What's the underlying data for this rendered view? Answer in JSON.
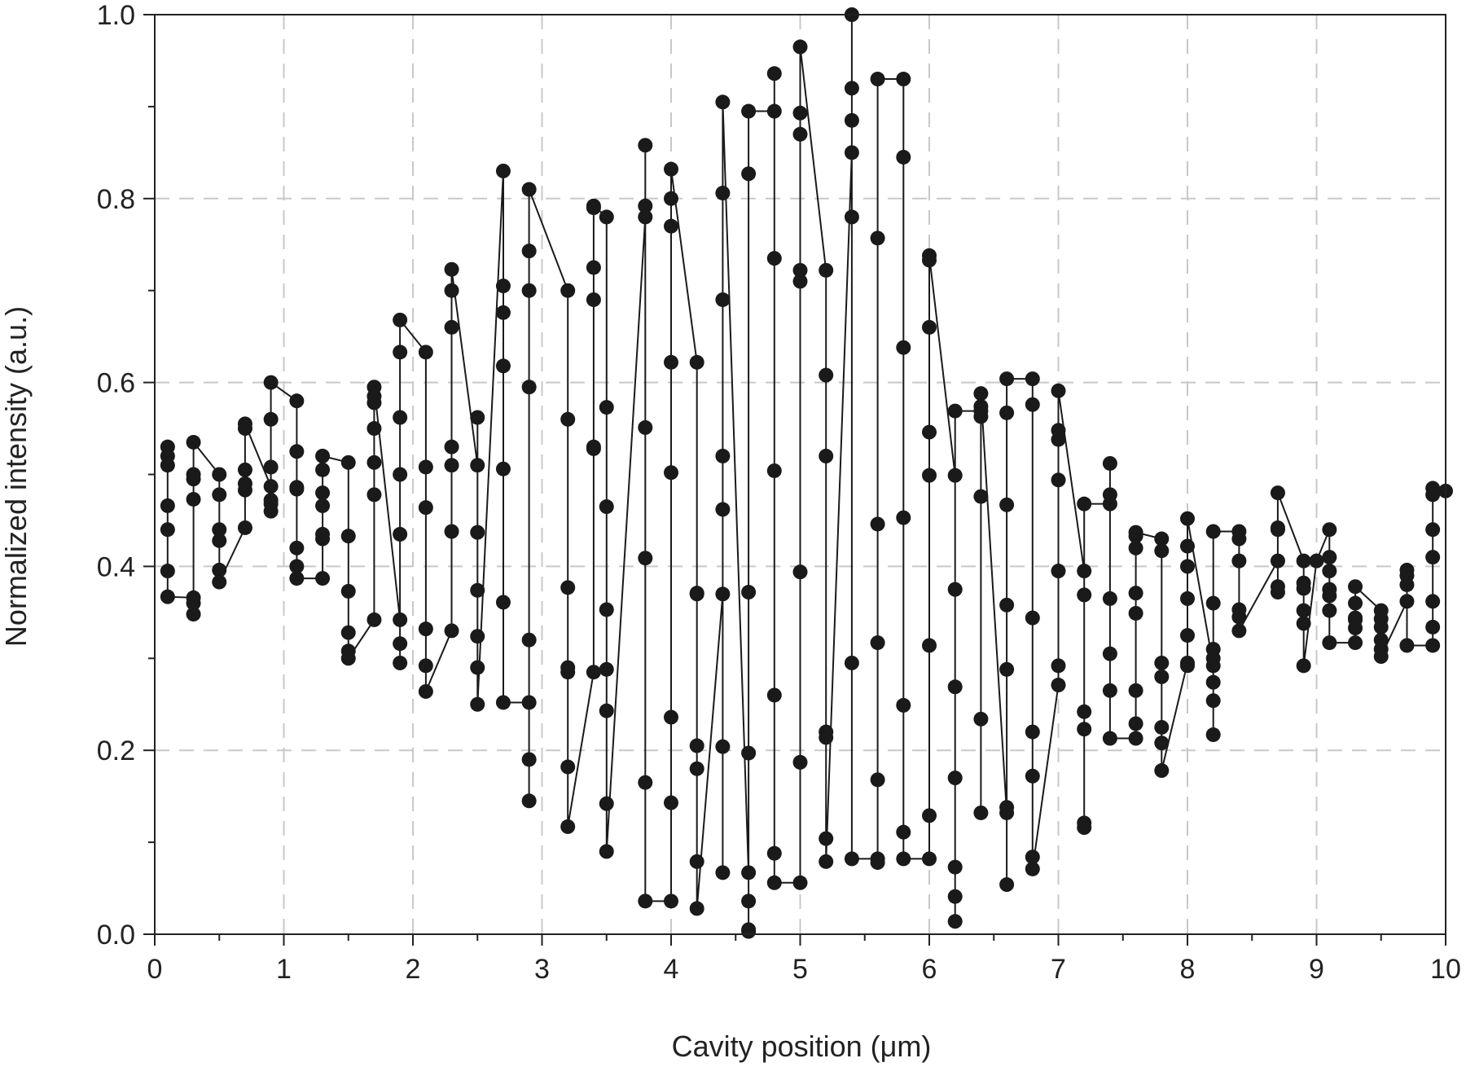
{
  "chart_data": {
    "type": "line",
    "xlabel": "Cavity position (μm)",
    "ylabel": "Normalized intensity (a.u.)",
    "xlim": [
      0,
      10
    ],
    "ylim": [
      0,
      1.0
    ],
    "x_ticks": [
      0,
      1,
      2,
      3,
      4,
      5,
      6,
      7,
      8,
      9,
      10
    ],
    "x_tick_labels": [
      "0",
      "1",
      "2",
      "3",
      "4",
      "5",
      "6",
      "7",
      "8",
      "9",
      "10"
    ],
    "y_ticks": [
      0.0,
      0.2,
      0.4,
      0.6,
      0.8,
      1.0
    ],
    "y_tick_labels": [
      "0.0",
      "0.2",
      "0.4",
      "0.6",
      "0.8",
      "1.0"
    ],
    "grid": true,
    "marker": "filled-circle",
    "series_color": "#1a1a1a",
    "columns": [
      {
        "x": 0.1,
        "y": [
          0.53,
          0.52,
          0.51,
          0.466,
          0.44,
          0.395,
          0.367
        ]
      },
      {
        "x": 0.3,
        "y": [
          0.366,
          0.36,
          0.348,
          0.473,
          0.495,
          0.5,
          0.535
        ]
      },
      {
        "x": 0.5,
        "y": [
          0.5,
          0.478,
          0.44,
          0.428,
          0.396,
          0.383
        ]
      },
      {
        "x": 0.7,
        "y": [
          0.442,
          0.483,
          0.49,
          0.505,
          0.55,
          0.555
        ]
      },
      {
        "x": 0.9,
        "y": [
          0.487,
          0.46,
          0.468,
          0.472,
          0.508,
          0.56,
          0.6
        ]
      },
      {
        "x": 1.1,
        "y": [
          0.58,
          0.525,
          0.486,
          0.484,
          0.42,
          0.4,
          0.387
        ]
      },
      {
        "x": 1.3,
        "y": [
          0.387,
          0.43,
          0.435,
          0.466,
          0.48,
          0.505,
          0.52
        ]
      },
      {
        "x": 1.5,
        "y": [
          0.513,
          0.433,
          0.373,
          0.328,
          0.308,
          0.3
        ]
      },
      {
        "x": 1.7,
        "y": [
          0.342,
          0.478,
          0.513,
          0.55,
          0.578,
          0.585,
          0.595
        ]
      },
      {
        "x": 1.9,
        "y": [
          0.342,
          0.316,
          0.295,
          0.435,
          0.5,
          0.562,
          0.633,
          0.668
        ]
      },
      {
        "x": 2.1,
        "y": [
          0.633,
          0.508,
          0.464,
          0.332,
          0.292,
          0.264
        ]
      },
      {
        "x": 2.3,
        "y": [
          0.33,
          0.438,
          0.51,
          0.53,
          0.66,
          0.7,
          0.723
        ]
      },
      {
        "x": 2.5,
        "y": [
          0.51,
          0.562,
          0.437,
          0.374,
          0.324,
          0.29,
          0.25
        ]
      },
      {
        "x": 2.7,
        "y": [
          0.83,
          0.705,
          0.676,
          0.618,
          0.506,
          0.361,
          0.252
        ]
      },
      {
        "x": 2.9,
        "y": [
          0.252,
          0.32,
          0.19,
          0.145,
          0.595,
          0.7,
          0.743,
          0.81
        ]
      },
      {
        "x": 3.2,
        "y": [
          0.7,
          0.56,
          0.377,
          0.29,
          0.285,
          0.182,
          0.117
        ]
      },
      {
        "x": 3.4,
        "y": [
          0.285,
          0.53,
          0.528,
          0.69,
          0.725,
          0.79,
          0.792
        ]
      },
      {
        "x": 3.5,
        "y": [
          0.78,
          0.573,
          0.465,
          0.353,
          0.288,
          0.243,
          0.142,
          0.09
        ]
      },
      {
        "x": 3.8,
        "y": [
          0.78,
          0.792,
          0.858,
          0.551,
          0.409,
          0.165,
          0.036
        ]
      },
      {
        "x": 4.0,
        "y": [
          0.036,
          0.143,
          0.236,
          0.502,
          0.622,
          0.77,
          0.8,
          0.832
        ]
      },
      {
        "x": 4.2,
        "y": [
          0.622,
          0.371,
          0.37,
          0.205,
          0.18,
          0.079,
          0.028
        ]
      },
      {
        "x": 4.4,
        "y": [
          0.37,
          0.52,
          0.462,
          0.204,
          0.067,
          0.69,
          0.806,
          0.905
        ]
      },
      {
        "x": 4.6,
        "y": [
          0.067,
          0.036,
          0.005,
          0.003,
          0.197,
          0.372,
          0.827,
          0.895
        ]
      },
      {
        "x": 4.8,
        "y": [
          0.895,
          0.936,
          0.735,
          0.504,
          0.26,
          0.088,
          0.056
        ]
      },
      {
        "x": 5.0,
        "y": [
          0.056,
          0.187,
          0.394,
          0.71,
          0.722,
          0.87,
          0.893,
          0.965
        ]
      },
      {
        "x": 5.2,
        "y": [
          0.722,
          0.608,
          0.52,
          0.22,
          0.214,
          0.104,
          0.079
        ]
      },
      {
        "x": 5.4,
        "y": [
          0.85,
          0.78,
          0.885,
          0.92,
          1.0,
          0.295,
          0.082
        ]
      },
      {
        "x": 5.6,
        "y": [
          0.082,
          0.078,
          0.168,
          0.317,
          0.446,
          0.757,
          0.93
        ]
      },
      {
        "x": 5.8,
        "y": [
          0.93,
          0.845,
          0.638,
          0.453,
          0.249,
          0.111,
          0.082
        ]
      },
      {
        "x": 6.0,
        "y": [
          0.082,
          0.129,
          0.314,
          0.499,
          0.546,
          0.66,
          0.733,
          0.738
        ]
      },
      {
        "x": 6.2,
        "y": [
          0.499,
          0.375,
          0.269,
          0.17,
          0.073,
          0.041,
          0.014,
          0.569
        ]
      },
      {
        "x": 6.4,
        "y": [
          0.569,
          0.574,
          0.563,
          0.476,
          0.234,
          0.132,
          0.588
        ]
      },
      {
        "x": 6.6,
        "y": [
          0.132,
          0.138,
          0.054,
          0.288,
          0.358,
          0.467,
          0.567,
          0.604
        ]
      },
      {
        "x": 6.8,
        "y": [
          0.604,
          0.576,
          0.344,
          0.22,
          0.172,
          0.084,
          0.071
        ]
      },
      {
        "x": 7.0,
        "y": [
          0.271,
          0.292,
          0.395,
          0.494,
          0.538,
          0.548,
          0.591
        ]
      },
      {
        "x": 7.2,
        "y": [
          0.395,
          0.369,
          0.242,
          0.223,
          0.121,
          0.116,
          0.468
        ]
      },
      {
        "x": 7.4,
        "y": [
          0.468,
          0.478,
          0.512,
          0.365,
          0.305,
          0.265,
          0.213
        ]
      },
      {
        "x": 7.6,
        "y": [
          0.213,
          0.229,
          0.265,
          0.349,
          0.371,
          0.42,
          0.433,
          0.437
        ]
      },
      {
        "x": 7.8,
        "y": [
          0.43,
          0.417,
          0.295,
          0.28,
          0.225,
          0.208,
          0.178
        ]
      },
      {
        "x": 8.0,
        "y": [
          0.295,
          0.292,
          0.325,
          0.365,
          0.4,
          0.422,
          0.452
        ]
      },
      {
        "x": 8.2,
        "y": [
          0.292,
          0.31,
          0.3,
          0.274,
          0.254,
          0.217,
          0.36,
          0.438
        ]
      },
      {
        "x": 8.4,
        "y": [
          0.438,
          0.43,
          0.406,
          0.353,
          0.345,
          0.33
        ]
      },
      {
        "x": 8.7,
        "y": [
          0.406,
          0.372,
          0.378,
          0.44,
          0.442,
          0.48
        ]
      },
      {
        "x": 8.9,
        "y": [
          0.406,
          0.382,
          0.376,
          0.352,
          0.338,
          0.292
        ]
      },
      {
        "x": 9.0,
        "y": [
          0.406
        ]
      },
      {
        "x": 9.1,
        "y": [
          0.44,
          0.41,
          0.395,
          0.375,
          0.368,
          0.352,
          0.317
        ]
      },
      {
        "x": 9.3,
        "y": [
          0.317,
          0.333,
          0.342,
          0.344,
          0.36,
          0.378
        ]
      },
      {
        "x": 9.5,
        "y": [
          0.352,
          0.343,
          0.334,
          0.32,
          0.31,
          0.302
        ]
      },
      {
        "x": 9.7,
        "y": [
          0.362,
          0.38,
          0.39,
          0.396,
          0.314
        ]
      },
      {
        "x": 9.9,
        "y": [
          0.314,
          0.334,
          0.362,
          0.41,
          0.44,
          0.478,
          0.485
        ]
      },
      {
        "x": 10.0,
        "y": [
          0.482
        ]
      }
    ]
  }
}
